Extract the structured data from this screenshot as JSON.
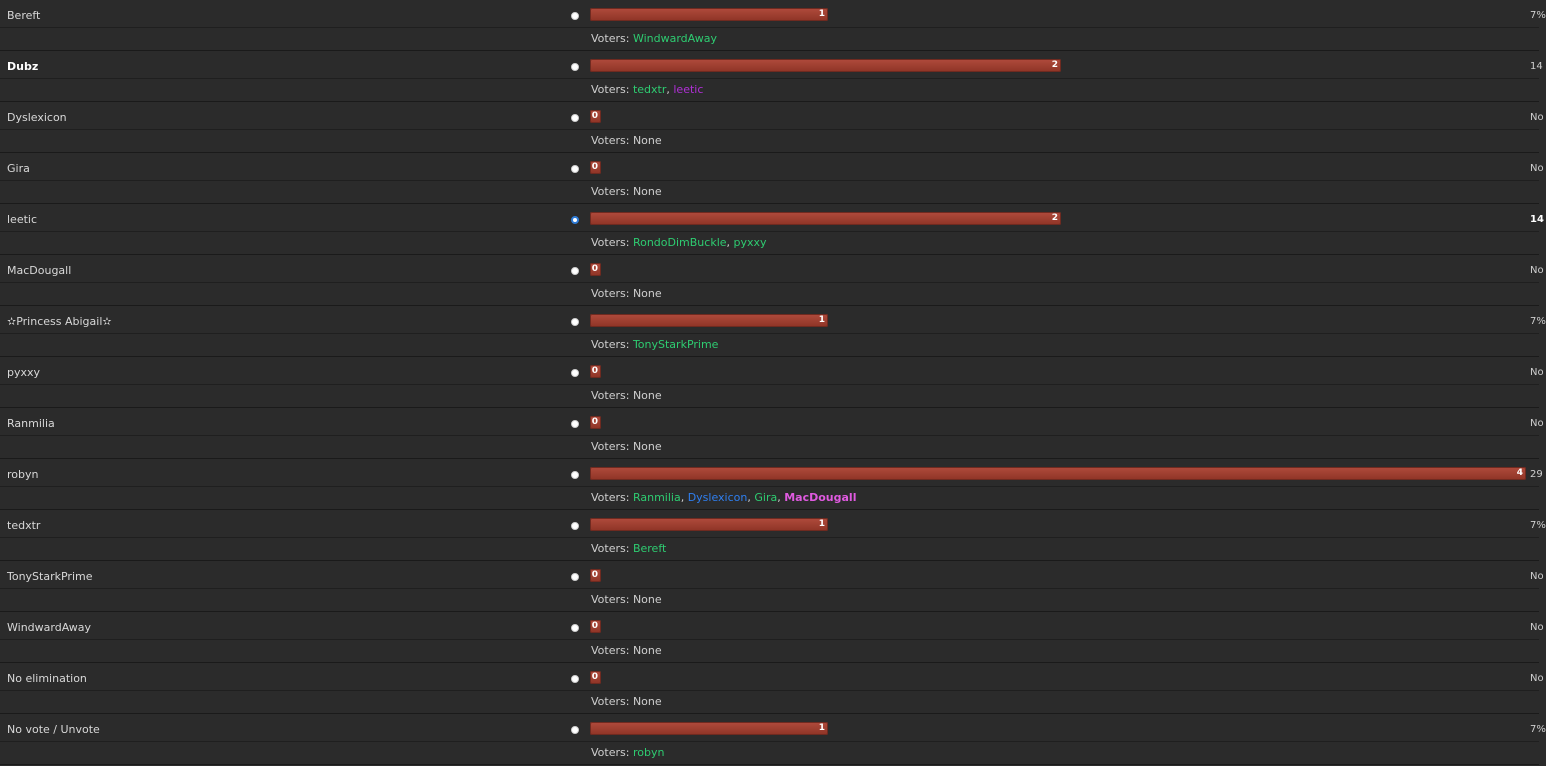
{
  "voters_prefix": "Voters:",
  "options": [
    {
      "name": "Bereft",
      "votes": "1",
      "percent": "7%",
      "voters": [
        {
          "name": "WindwardAway",
          "color": "#2ecc71"
        }
      ]
    },
    {
      "name": "Dubz",
      "votes": "2",
      "percent": "14",
      "voters": [
        {
          "name": "tedxtr",
          "color": "#2ecc71"
        },
        {
          "name": "leetic",
          "color": "#b02fd6"
        }
      ]
    },
    {
      "name": "Dyslexicon",
      "votes": "0",
      "percent": "No",
      "voters": [
        {
          "name": "None",
          "color": "#cfcfcf"
        }
      ]
    },
    {
      "name": "Gira",
      "votes": "0",
      "percent": "No",
      "voters": [
        {
          "name": "None",
          "color": "#cfcfcf"
        }
      ]
    },
    {
      "name": "leetic",
      "votes": "2",
      "percent": "14",
      "voters": [
        {
          "name": "RondoDimBuckle",
          "color": "#2ecc71"
        },
        {
          "name": "pyxxy",
          "color": "#2ecc71"
        }
      ]
    },
    {
      "name": "MacDougall",
      "votes": "0",
      "percent": "No",
      "voters": [
        {
          "name": "None",
          "color": "#cfcfcf"
        }
      ]
    },
    {
      "name": "✫Princess Abigail✫",
      "votes": "1",
      "percent": "7%",
      "voters": [
        {
          "name": "TonyStarkPrime",
          "color": "#2ecc71"
        }
      ]
    },
    {
      "name": "pyxxy",
      "votes": "0",
      "percent": "No",
      "voters": [
        {
          "name": "None",
          "color": "#cfcfcf"
        }
      ]
    },
    {
      "name": "Ranmilia",
      "votes": "0",
      "percent": "No",
      "voters": [
        {
          "name": "None",
          "color": "#cfcfcf"
        }
      ]
    },
    {
      "name": "robyn",
      "votes": "4",
      "percent": "29",
      "voters": [
        {
          "name": "Ranmilia",
          "color": "#2ecc71"
        },
        {
          "name": "Dyslexicon",
          "color": "#2f7ff0"
        },
        {
          "name": "Gira",
          "color": "#2ecc71"
        },
        {
          "name": "MacDougall",
          "color": "#e05ae0"
        }
      ]
    },
    {
      "name": "tedxtr",
      "votes": "1",
      "percent": "7%",
      "voters": [
        {
          "name": "Bereft",
          "color": "#2ecc71"
        }
      ]
    },
    {
      "name": "TonyStarkPrime",
      "votes": "0",
      "percent": "No",
      "voters": [
        {
          "name": "None",
          "color": "#cfcfcf"
        }
      ]
    },
    {
      "name": "WindwardAway",
      "votes": "0",
      "percent": "No",
      "voters": [
        {
          "name": "None",
          "color": "#cfcfcf"
        }
      ]
    },
    {
      "name": "No elimination",
      "votes": "0",
      "percent": "No",
      "voters": [
        {
          "name": "None",
          "color": "#cfcfcf"
        }
      ]
    },
    {
      "name": "No vote / Unvote",
      "votes": "1",
      "percent": "7%",
      "voters": [
        {
          "name": "robyn",
          "color": "#2ecc71"
        }
      ]
    }
  ],
  "selected_option": "leetic",
  "bold_option": "Dubz"
}
